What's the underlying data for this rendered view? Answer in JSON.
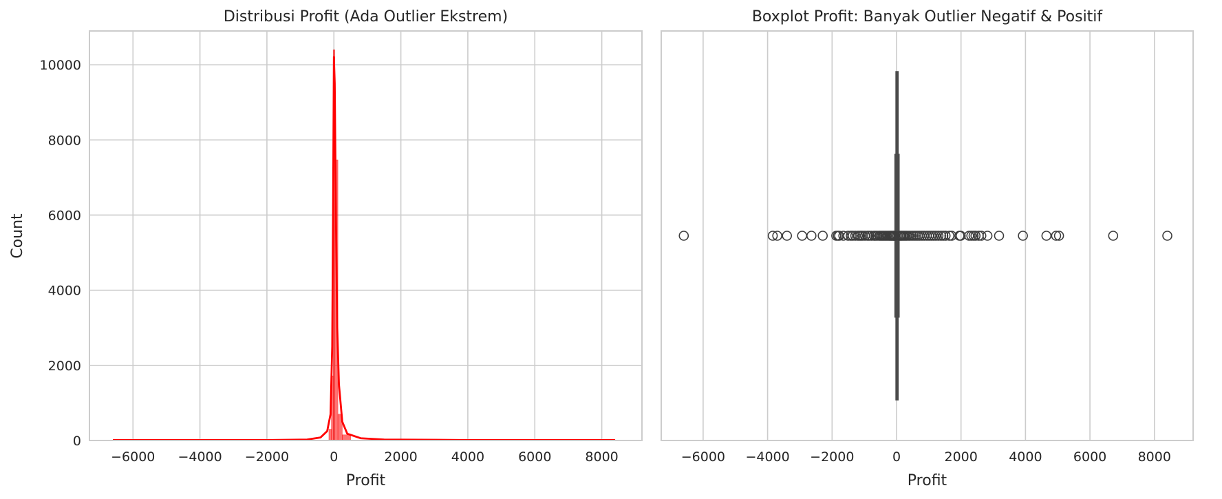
{
  "chart_data": [
    {
      "type": "histogram",
      "title": "Distribusi Profit (Ada Outlier Ekstrem)",
      "xlabel": "Profit",
      "ylabel": "Count",
      "xlim": [
        -7300,
        9200
      ],
      "ylim": [
        0,
        10900
      ],
      "xticks": [
        -6000,
        -4000,
        -2000,
        0,
        2000,
        4000,
        6000,
        8000
      ],
      "yticks": [
        0,
        2000,
        4000,
        6000,
        8000,
        10000
      ],
      "grid": true,
      "color": "#ff0000",
      "bins": [
        {
          "x0": -6600,
          "x1": -150,
          "count": 10
        },
        {
          "x0": -150,
          "x1": -75,
          "count": 300
        },
        {
          "x0": -75,
          "x1": -20,
          "count": 1720
        },
        {
          "x0": -20,
          "x1": 30,
          "count": 10400
        },
        {
          "x0": 30,
          "x1": 120,
          "count": 7470
        },
        {
          "x0": 120,
          "x1": 250,
          "count": 700
        },
        {
          "x0": 250,
          "x1": 500,
          "count": 150
        },
        {
          "x0": 500,
          "x1": 8400,
          "count": 10
        }
      ],
      "kde": [
        [
          -6600,
          10
        ],
        [
          -2000,
          12
        ],
        [
          -800,
          25
        ],
        [
          -400,
          80
        ],
        [
          -200,
          250
        ],
        [
          -100,
          700
        ],
        [
          -50,
          2500
        ],
        [
          -25,
          6000
        ],
        [
          0,
          10200
        ],
        [
          25,
          9500
        ],
        [
          60,
          6000
        ],
        [
          100,
          3000
        ],
        [
          150,
          1500
        ],
        [
          250,
          500
        ],
        [
          400,
          180
        ],
        [
          800,
          60
        ],
        [
          1500,
          25
        ],
        [
          4000,
          12
        ],
        [
          8400,
          10
        ]
      ]
    },
    {
      "type": "boxplot",
      "title": "Boxplot Profit: Banyak Outlier Negatif & Positif",
      "xlabel": "Profit",
      "xlim": [
        -7300,
        9200
      ],
      "xticks": [
        -6000,
        -4000,
        -2000,
        0,
        2000,
        4000,
        6000,
        8000
      ],
      "grid": true,
      "box": {
        "q1": 2,
        "median": 9,
        "q3": 29,
        "whisker_low": -40,
        "whisker_high": 70
      },
      "outliers": [
        -6600,
        -3840,
        -3700,
        -3400,
        -2930,
        -2640,
        -2290,
        -1870,
        -1820,
        -1780,
        -1650,
        -1500,
        -1420,
        -1360,
        -1280,
        -1200,
        -1150,
        -1100,
        -1050,
        -980,
        -900,
        -850,
        -780,
        -700,
        -650,
        -600,
        -540,
        -500,
        -460,
        -420,
        -380,
        -340,
        -300,
        -260,
        -220,
        -190,
        -160,
        -130,
        -100,
        -80,
        -60,
        100,
        130,
        160,
        200,
        240,
        280,
        320,
        370,
        420,
        480,
        540,
        600,
        660,
        720,
        790,
        860,
        940,
        1010,
        1080,
        1150,
        1220,
        1300,
        1380,
        1450,
        1520,
        1640,
        1710,
        1950,
        1990,
        2250,
        2320,
        2390,
        2450,
        2550,
        2630,
        2820,
        3180,
        3920,
        4650,
        4950,
        5040,
        6720,
        8400
      ]
    }
  ]
}
